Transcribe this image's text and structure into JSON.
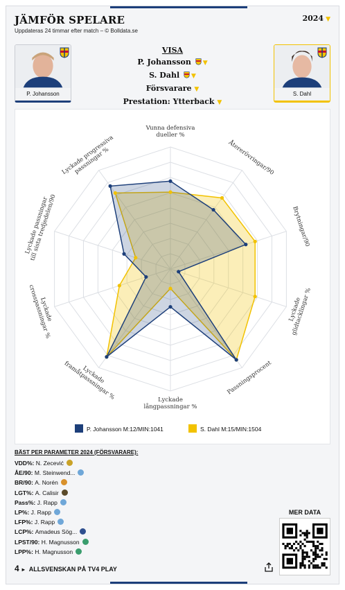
{
  "header": {
    "title": "JÄMFÖR SPELARE",
    "subtitle": "Uppdateras 24 timmar efter match – © Bolldata.se",
    "year": "2024"
  },
  "players": {
    "left": {
      "name": "P. Johansson",
      "color": "#1d3f7a"
    },
    "right": {
      "name": "S. Dahl",
      "color": "#f2c200"
    }
  },
  "visa": {
    "heading": "VISA",
    "player1": "P. Johansson",
    "player2": "S. Dahl",
    "position": "Försvarare",
    "prestation": "Prestation: Ytterback"
  },
  "legend": {
    "left": "P. Johansson M:12/MIN:1041",
    "right": "S. Dahl M:15/MIN:1504"
  },
  "chart_data": {
    "type": "radar",
    "axes": [
      "Vunna defensiva dueller %",
      "Återerövringar/90",
      "Brytningar/90",
      "Lyckade glidtacklingar %",
      "Passningsprocent",
      "Lyckade långpassningar %",
      "Lyckade framåtpassningar %",
      "Lyckade crosspassningar %",
      "Lyckade passningar till sista tredjedelen/90",
      "Lyckade progressiva passningar %"
    ],
    "range": [
      0,
      100
    ],
    "grid": true,
    "series": [
      {
        "name": "P. Johansson M:12/MIN:1041",
        "color": "#1d3f7a",
        "values": [
          72,
          60,
          65,
          7,
          92,
          31,
          89,
          21,
          40,
          84
        ]
      },
      {
        "name": "S. Dahl M:15/MIN:1504",
        "color": "#f2c200",
        "values": [
          63,
          72,
          73,
          73,
          92,
          16,
          89,
          44,
          30,
          77
        ]
      }
    ]
  },
  "best": {
    "heading": "BÄST PER PARAMETER 2024 (FÖRSVARARE):",
    "rows": [
      {
        "key": "VDD%",
        "value": "N. Zecević"
      },
      {
        "key": "ÅE/90",
        "value": "M. Steinwend..."
      },
      {
        "key": "BR/90",
        "value": "A. Norén"
      },
      {
        "key": "LGT%",
        "value": "A. Calisir"
      },
      {
        "key": "Pass%",
        "value": "J. Rapp"
      },
      {
        "key": "LP%",
        "value": "J. Rapp"
      },
      {
        "key": "LFP%",
        "value": "J. Rapp"
      },
      {
        "key": "LCP%",
        "value": "Amadeus Sög..."
      },
      {
        "key": "LPST/90",
        "value": "H. Magnusson"
      },
      {
        "key": "LPP%",
        "value": "H. Magnusson"
      }
    ],
    "badge_colors": [
      "#c9a227",
      "#6fa7d8",
      "#d8912c",
      "#5a4a2a",
      "#6fa7d8",
      "#6fa7d8",
      "#6fa7d8",
      "#2f4f8f",
      "#3a9d6e",
      "#3a9d6e"
    ]
  },
  "footer": {
    "text": "ALLSVENSKAN PÅ TV4 PLAY",
    "logo": "4",
    "arrow": "▸"
  },
  "qr": {
    "label": "MER DATA"
  }
}
